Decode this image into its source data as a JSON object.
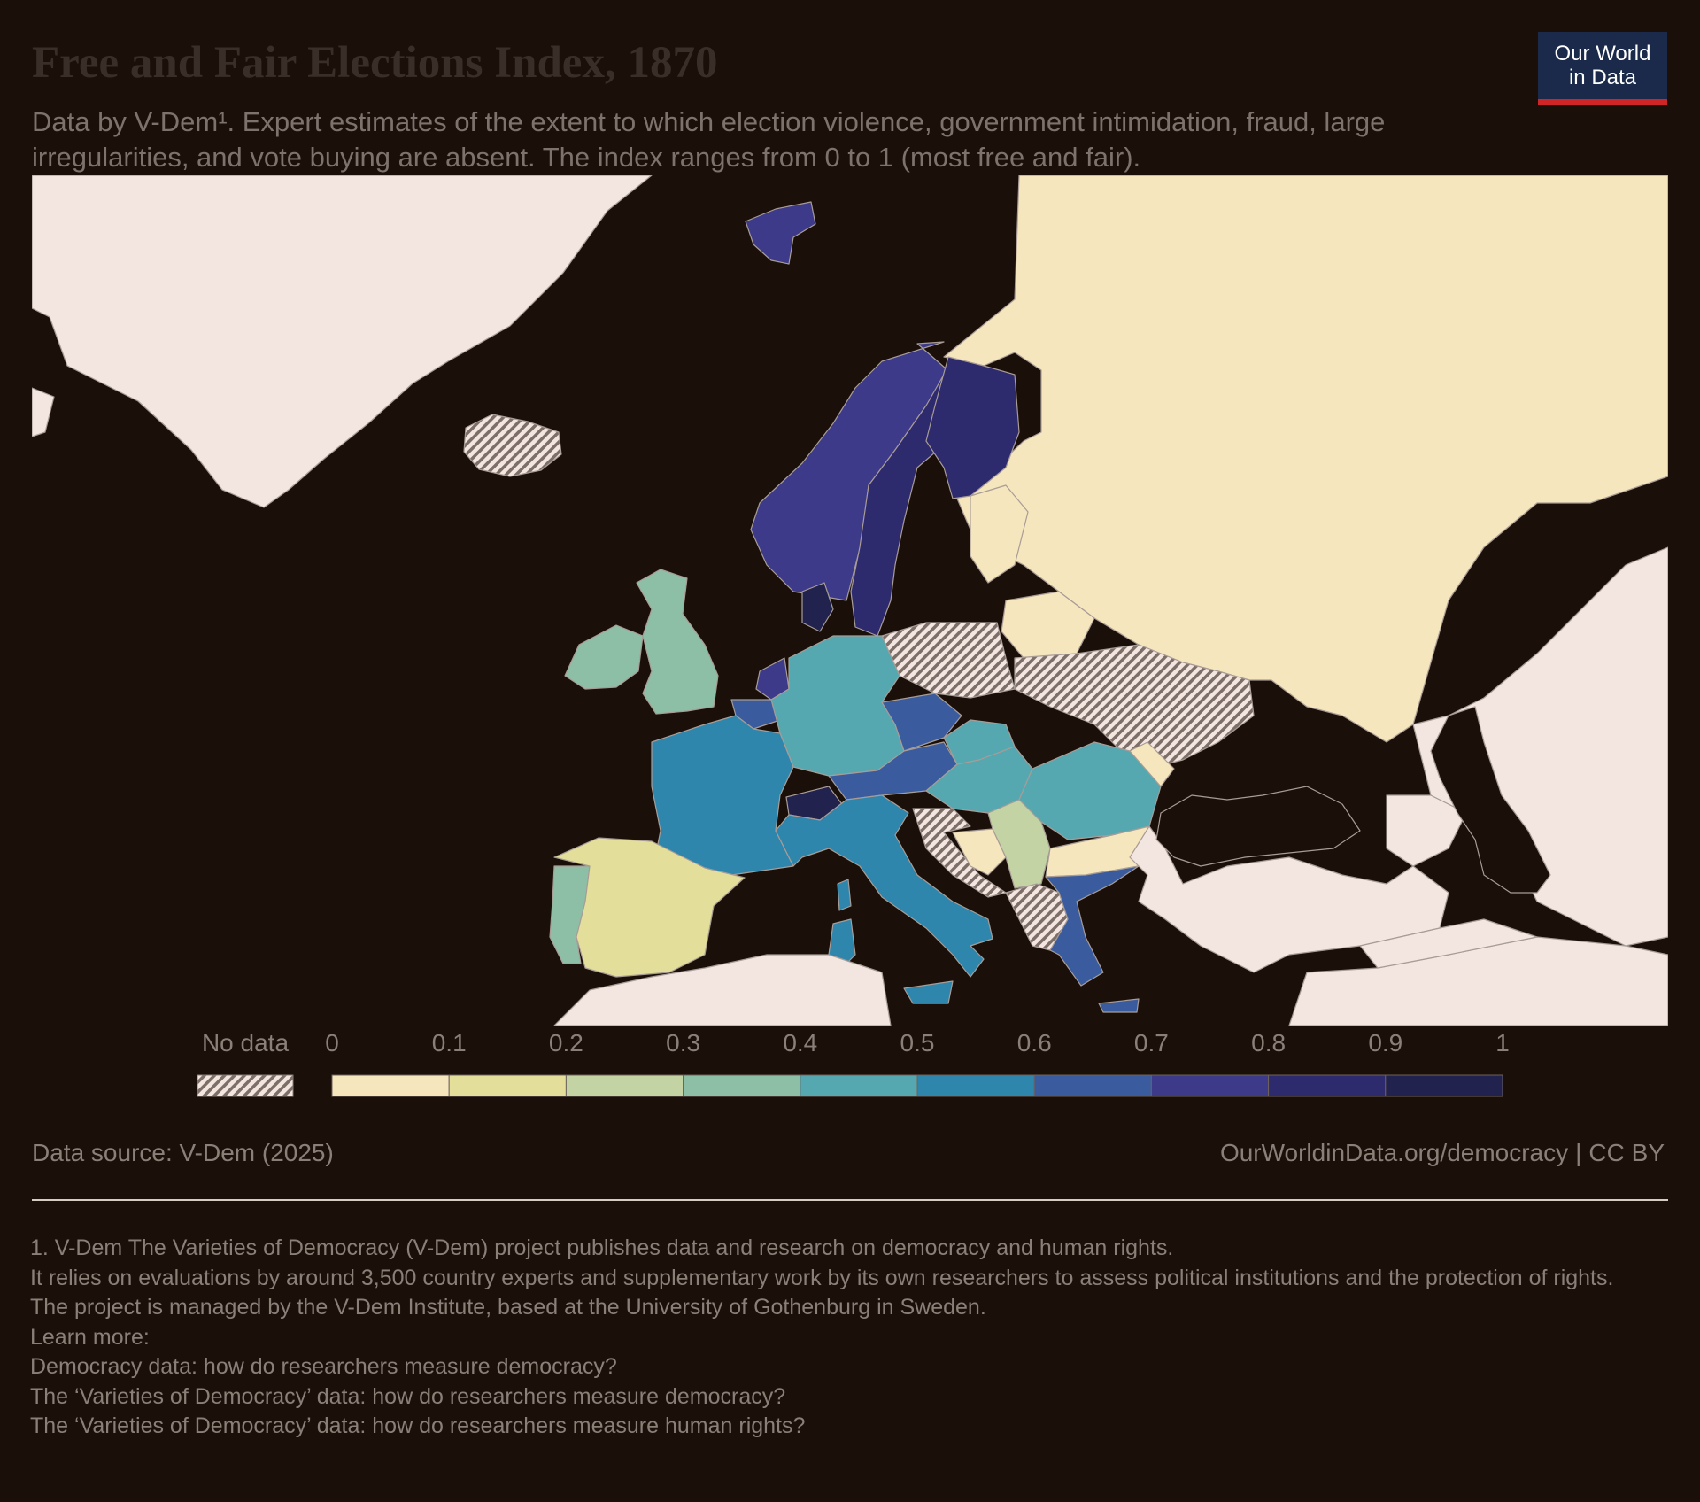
{
  "header": {
    "title": "Free and Fair Elections Index, 1870",
    "subtitle": "Data by V-Dem¹. Expert estimates of the extent to which election violence, government intimidation, fraud, large irregularities, and vote buying are absent. The index ranges from 0 to 1 (most free and fair).",
    "logo_line1": "Our World",
    "logo_line2": "in Data"
  },
  "colors": {
    "background": "#1b0f0a",
    "ocean": "#1b0f0a",
    "land_no_region": "#f3e6e1",
    "border": "#a89c96",
    "logo_bg": "#1b2a4a",
    "logo_accent": "#ce2626"
  },
  "legend": {
    "no_data_label": "No data",
    "tick_labels": [
      "0",
      "0.1",
      "0.2",
      "0.3",
      "0.4",
      "0.5",
      "0.6",
      "0.7",
      "0.8",
      "0.9",
      "1"
    ],
    "bins": [
      {
        "from": 0.0,
        "to": 0.1,
        "color": "#f5e6bd"
      },
      {
        "from": 0.1,
        "to": 0.2,
        "color": "#e3df9a"
      },
      {
        "from": 0.2,
        "to": 0.3,
        "color": "#c4d3a3"
      },
      {
        "from": 0.3,
        "to": 0.4,
        "color": "#8dbfa6"
      },
      {
        "from": 0.4,
        "to": 0.5,
        "color": "#56a8b0"
      },
      {
        "from": 0.5,
        "to": 0.6,
        "color": "#2e86ad"
      },
      {
        "from": 0.6,
        "to": 0.7,
        "color": "#3a5c9e"
      },
      {
        "from": 0.7,
        "to": 0.8,
        "color": "#3d3a8a"
      },
      {
        "from": 0.8,
        "to": 0.9,
        "color": "#2e2a6e"
      },
      {
        "from": 0.9,
        "to": 1.0,
        "color": "#22224f"
      }
    ]
  },
  "chart_data": {
    "type": "choropleth",
    "year": 1870,
    "regions": [
      {
        "name": "Russia",
        "bin": "0-0.1",
        "status": "data"
      },
      {
        "name": "Poland",
        "bin": "none",
        "status": "no data"
      },
      {
        "name": "Ukraine",
        "bin": "none",
        "status": "no data"
      },
      {
        "name": "Iceland",
        "bin": "none",
        "status": "no data"
      },
      {
        "name": "Norway",
        "bin": "0.7-0.8",
        "status": "data"
      },
      {
        "name": "Sweden",
        "bin": "0.8-0.9",
        "status": "data"
      },
      {
        "name": "Finland",
        "bin": "0.8-0.9",
        "status": "data"
      },
      {
        "name": "Svalbard",
        "bin": "0.7-0.8",
        "status": "data"
      },
      {
        "name": "Denmark",
        "bin": "0.9-1",
        "status": "data"
      },
      {
        "name": "United Kingdom",
        "bin": "0.3-0.4",
        "status": "data"
      },
      {
        "name": "Ireland",
        "bin": "0.3-0.4",
        "status": "data"
      },
      {
        "name": "Netherlands",
        "bin": "0.7-0.8",
        "status": "data"
      },
      {
        "name": "Belgium",
        "bin": "0.6-0.7",
        "status": "data"
      },
      {
        "name": "Germany",
        "bin": "0.4-0.5",
        "status": "data"
      },
      {
        "name": "France",
        "bin": "0.5-0.6",
        "status": "data"
      },
      {
        "name": "Switzerland",
        "bin": "0.9-1",
        "status": "data"
      },
      {
        "name": "Czechia",
        "bin": "0.6-0.7",
        "status": "data"
      },
      {
        "name": "Austria",
        "bin": "0.6-0.7",
        "status": "data"
      },
      {
        "name": "Slovakia",
        "bin": "0.4-0.5",
        "status": "data"
      },
      {
        "name": "Hungary",
        "bin": "0.4-0.5",
        "status": "data"
      },
      {
        "name": "Romania",
        "bin": "0.4-0.5",
        "status": "data"
      },
      {
        "name": "Moldova",
        "bin": "0-0.1",
        "status": "data"
      },
      {
        "name": "Italy",
        "bin": "0.5-0.6",
        "status": "data"
      },
      {
        "name": "Spain",
        "bin": "0.1-0.2",
        "status": "data"
      },
      {
        "name": "Portugal",
        "bin": "0.3-0.4",
        "status": "data"
      },
      {
        "name": "Serbia",
        "bin": "0.2-0.3",
        "status": "data"
      },
      {
        "name": "Bulgaria",
        "bin": "0-0.1",
        "status": "data"
      },
      {
        "name": "Bosnia and Herzegovina",
        "bin": "0-0.1",
        "status": "data"
      },
      {
        "name": "Croatia",
        "bin": "none",
        "status": "no data"
      },
      {
        "name": "Albania",
        "bin": "none",
        "status": "no data"
      },
      {
        "name": "Greece",
        "bin": "0.6-0.7",
        "status": "data"
      },
      {
        "name": "Baltic states",
        "bin": "0-0.1",
        "status": "data"
      },
      {
        "name": "Belarus",
        "bin": "0-0.1",
        "status": "data"
      }
    ]
  },
  "footer": {
    "source": "Data source: V-Dem (2025)",
    "url": "OurWorldinData.org/democracy",
    "separator": "|",
    "license": "CC BY"
  },
  "notes": [
    "1. V-Dem The Varieties of Democracy (V-Dem) project publishes data and research on democracy and human rights.",
    "It relies on evaluations by around 3,500 country experts and supplementary work by its own researchers to assess political institutions and the protection of rights.",
    "The project is managed by the V-Dem Institute, based at the University of Gothenburg in Sweden.",
    "Learn more:",
    "Democracy data: how do researchers measure democracy?",
    "The ‘Varieties of Democracy’ data: how do researchers measure democracy?",
    "The ‘Varieties of Democracy’ data: how do researchers measure human rights?"
  ]
}
